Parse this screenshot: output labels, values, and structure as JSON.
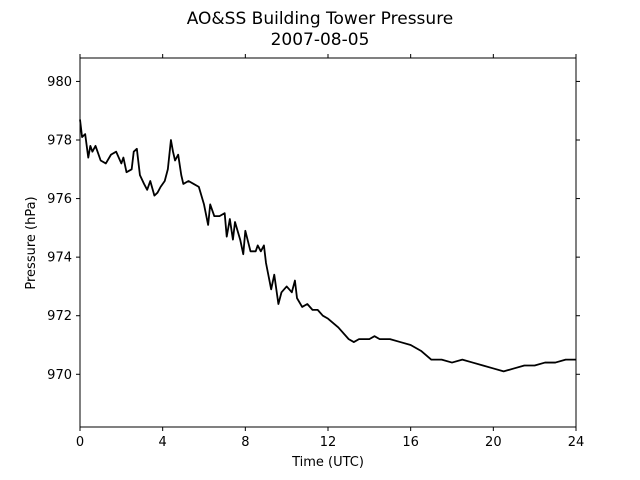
{
  "chart_data": {
    "type": "line",
    "title": "AO&SS Building Tower Pressure",
    "subtitle": "2007-08-05",
    "x_label": "Time (UTC)",
    "y_label": "Pressure (hPa)",
    "color": "#000000",
    "x": [
      0,
      0.1,
      0.25,
      0.4,
      0.5,
      0.6,
      0.75,
      1.0,
      1.25,
      1.5,
      1.75,
      2.0,
      2.1,
      2.25,
      2.5,
      2.6,
      2.75,
      2.9,
      3.1,
      3.25,
      3.4,
      3.6,
      3.75,
      3.9,
      4.1,
      4.25,
      4.4,
      4.5,
      4.6,
      4.75,
      4.9,
      5.0,
      5.25,
      5.5,
      5.75,
      6.0,
      6.2,
      6.3,
      6.5,
      6.75,
      7.0,
      7.1,
      7.25,
      7.4,
      7.5,
      7.75,
      7.9,
      8.0,
      8.25,
      8.5,
      8.6,
      8.75,
      8.9,
      9.0,
      9.25,
      9.4,
      9.6,
      9.75,
      10.0,
      10.25,
      10.4,
      10.5,
      10.75,
      11.0,
      11.25,
      11.5,
      11.75,
      12.0,
      12.5,
      13.0,
      13.25,
      13.5,
      14.0,
      14.25,
      14.5,
      15.0,
      15.5,
      16.0,
      16.5,
      17.0,
      17.5,
      18.0,
      18.5,
      19.0,
      19.5,
      20.0,
      20.5,
      21.0,
      21.5,
      22.0,
      22.5,
      23.0,
      23.5,
      24.0
    ],
    "values": [
      978.7,
      978.1,
      978.2,
      977.4,
      977.8,
      977.6,
      977.8,
      977.3,
      977.2,
      977.5,
      977.6,
      977.2,
      977.4,
      976.9,
      977.0,
      977.6,
      977.7,
      976.8,
      976.5,
      976.3,
      976.6,
      976.1,
      976.2,
      976.4,
      976.6,
      977.0,
      978.0,
      977.6,
      977.3,
      977.5,
      976.8,
      976.5,
      976.6,
      976.5,
      976.4,
      975.8,
      975.1,
      975.8,
      975.4,
      975.4,
      975.5,
      974.7,
      975.3,
      974.6,
      975.2,
      974.6,
      974.1,
      974.9,
      974.2,
      974.2,
      974.4,
      974.2,
      974.4,
      973.8,
      972.9,
      973.4,
      972.4,
      972.8,
      973.0,
      972.8,
      973.2,
      972.6,
      972.3,
      972.4,
      972.2,
      972.2,
      972.0,
      971.9,
      971.6,
      971.2,
      971.1,
      971.2,
      971.2,
      971.3,
      971.2,
      971.2,
      971.1,
      971.0,
      970.8,
      970.5,
      970.5,
      970.4,
      970.5,
      970.4,
      970.3,
      970.2,
      970.1,
      970.2,
      970.3,
      970.3,
      970.4,
      970.4,
      970.5,
      970.5
    ],
    "xlim": [
      0,
      24
    ],
    "xticks": [
      0,
      4,
      8,
      12,
      16,
      20,
      24
    ],
    "ylim": [
      968.2,
      980.8
    ],
    "yticks": [
      970,
      972,
      974,
      976,
      978,
      980
    ],
    "grid": false
  }
}
